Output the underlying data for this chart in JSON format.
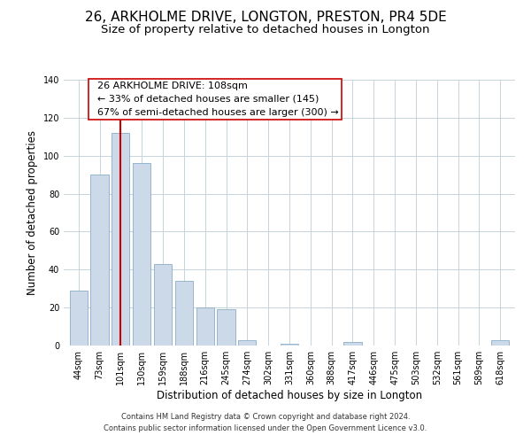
{
  "title": "26, ARKHOLME DRIVE, LONGTON, PRESTON, PR4 5DE",
  "subtitle": "Size of property relative to detached houses in Longton",
  "xlabel": "Distribution of detached houses by size in Longton",
  "ylabel": "Number of detached properties",
  "bar_labels": [
    "44sqm",
    "73sqm",
    "101sqm",
    "130sqm",
    "159sqm",
    "188sqm",
    "216sqm",
    "245sqm",
    "274sqm",
    "302sqm",
    "331sqm",
    "360sqm",
    "388sqm",
    "417sqm",
    "446sqm",
    "475sqm",
    "503sqm",
    "532sqm",
    "561sqm",
    "589sqm",
    "618sqm"
  ],
  "bar_values": [
    29,
    90,
    112,
    96,
    43,
    34,
    20,
    19,
    3,
    0,
    1,
    0,
    0,
    2,
    0,
    0,
    0,
    0,
    0,
    0,
    3
  ],
  "bar_color": "#ccd9e8",
  "bar_edge_color": "#8aaec8",
  "vline_x": 2,
  "vline_color": "#cc0000",
  "ylim": [
    0,
    140
  ],
  "yticks": [
    0,
    20,
    40,
    60,
    80,
    100,
    120,
    140
  ],
  "annotation_title": "26 ARKHOLME DRIVE: 108sqm",
  "annotation_line1": "← 33% of detached houses are smaller (145)",
  "annotation_line2": "67% of semi-detached houses are larger (300) →",
  "footer_line1": "Contains HM Land Registry data © Crown copyright and database right 2024.",
  "footer_line2": "Contains public sector information licensed under the Open Government Licence v3.0.",
  "background_color": "#ffffff",
  "grid_color": "#c8d4dc",
  "title_fontsize": 11,
  "subtitle_fontsize": 9.5,
  "axis_label_fontsize": 8.5,
  "tick_fontsize": 7,
  "footer_fontsize": 6,
  "annotation_fontsize": 8
}
